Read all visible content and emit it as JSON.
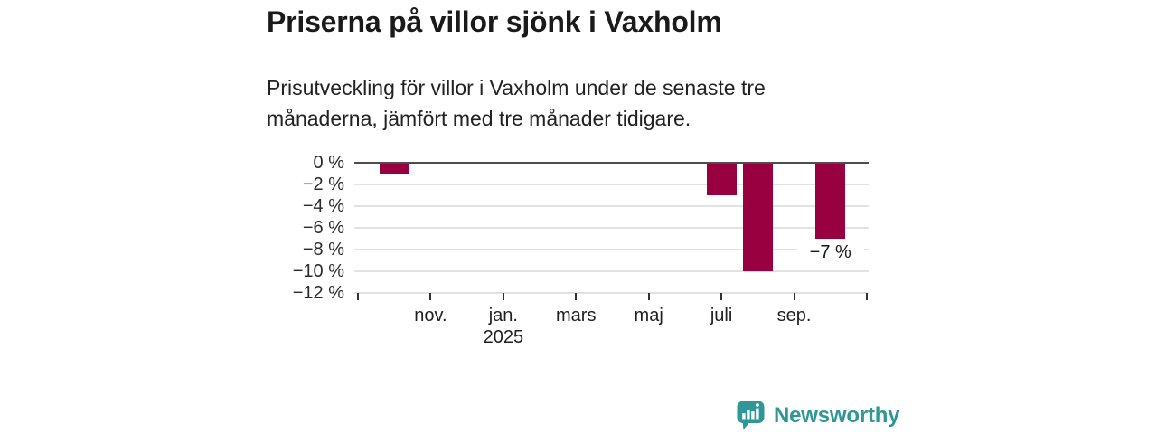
{
  "chart_data": {
    "type": "bar",
    "title": "Priserna på villor sjönk i Vaxholm",
    "subtitle": "Prisutveckling för villor i Vaxholm under de senaste tre månaderna, jämfört med tre månader tidigare.",
    "unit": "%",
    "ylim": [
      -12,
      0
    ],
    "grid": true,
    "legend": false,
    "bar_color": "#990040",
    "axis_text_color": "#2b2b2b",
    "zero_line_color": "#4d4d4d",
    "grid_color": "#e2e2e2",
    "y_ticks": [
      0,
      -2,
      -4,
      -6,
      -8,
      -10,
      -12
    ],
    "y_tick_labels": [
      "0 %",
      "−2 %",
      "−4 %",
      "−6 %",
      "−8 %",
      "−10 %",
      "−12 %"
    ],
    "x_axis": {
      "start_month": "sep. 2024",
      "end_month": "nov. 2025",
      "months_total": 14,
      "tick_every_months": 2,
      "tick_labels": [
        "",
        "nov.",
        "jan.",
        "mars",
        "maj",
        "juli",
        "sep.",
        ""
      ],
      "year_label": "2025",
      "year_under_tick_index": 2
    },
    "bars": [
      {
        "month": "okt. 2024",
        "month_index": 1,
        "value": -1,
        "data_label": ""
      },
      {
        "month": "juli 2025",
        "month_index": 10,
        "value": -3,
        "data_label": ""
      },
      {
        "month": "aug. 2025",
        "month_index": 11,
        "value": -10,
        "data_label": ""
      },
      {
        "month": "okt. 2025",
        "month_index": 13,
        "value": -7,
        "data_label": "−7 %"
      }
    ]
  },
  "branding": {
    "logo_text": "Newsworthy",
    "logo_color": "#2f9795"
  }
}
